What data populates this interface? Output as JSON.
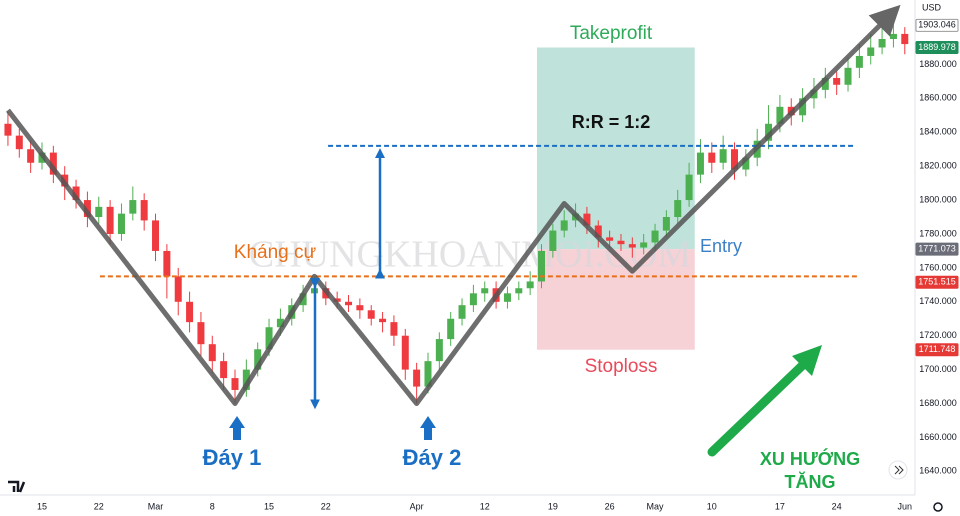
{
  "chart_data": {
    "type": "candlestick",
    "currency": "USD",
    "watermark": "CHUNGKHOANMOI.COM",
    "up_color": "#4caf50",
    "down_color": "#ef3a3f",
    "open": [
      1845,
      1838,
      1830,
      1822,
      1828,
      1815,
      1808,
      1800,
      1790,
      1796,
      1780,
      1792,
      1800,
      1788,
      1770,
      1755,
      1740,
      1728,
      1715,
      1705,
      1695,
      1688,
      1700,
      1712,
      1725,
      1730,
      1738,
      1745,
      1748,
      1742,
      1740,
      1738,
      1735,
      1730,
      1728,
      1720,
      1700,
      1690,
      1705,
      1718,
      1730,
      1738,
      1745,
      1748,
      1740,
      1745,
      1748,
      1752,
      1770,
      1782,
      1788,
      1792,
      1785,
      1778,
      1776,
      1774,
      1772,
      1775,
      1782,
      1790,
      1800,
      1815,
      1828,
      1822,
      1830,
      1818,
      1825,
      1835,
      1845,
      1855,
      1850,
      1860,
      1865,
      1872,
      1868,
      1878,
      1885,
      1890,
      1895,
      1898
    ],
    "high": [
      1852,
      1842,
      1835,
      1834,
      1832,
      1820,
      1812,
      1805,
      1802,
      1800,
      1798,
      1808,
      1804,
      1792,
      1774,
      1760,
      1746,
      1734,
      1720,
      1710,
      1700,
      1706,
      1716,
      1730,
      1736,
      1742,
      1750,
      1755,
      1752,
      1746,
      1744,
      1742,
      1738,
      1734,
      1732,
      1724,
      1704,
      1710,
      1722,
      1734,
      1742,
      1750,
      1752,
      1752,
      1749,
      1752,
      1758,
      1774,
      1786,
      1794,
      1798,
      1796,
      1788,
      1782,
      1780,
      1778,
      1780,
      1786,
      1794,
      1806,
      1822,
      1836,
      1834,
      1838,
      1834,
      1830,
      1842,
      1856,
      1862,
      1860,
      1866,
      1872,
      1878,
      1876,
      1884,
      1892,
      1898,
      1908,
      1906,
      1902
    ],
    "low": [
      1832,
      1825,
      1816,
      1818,
      1810,
      1800,
      1795,
      1784,
      1786,
      1774,
      1776,
      1788,
      1782,
      1764,
      1742,
      1732,
      1722,
      1708,
      1698,
      1688,
      1680,
      1684,
      1696,
      1708,
      1720,
      1726,
      1734,
      1740,
      1738,
      1736,
      1734,
      1730,
      1726,
      1722,
      1714,
      1694,
      1680,
      1686,
      1700,
      1714,
      1726,
      1734,
      1740,
      1736,
      1736,
      1741,
      1744,
      1748,
      1766,
      1778,
      1784,
      1780,
      1772,
      1772,
      1770,
      1766,
      1768,
      1770,
      1778,
      1786,
      1796,
      1810,
      1816,
      1818,
      1812,
      1814,
      1820,
      1830,
      1840,
      1844,
      1846,
      1854,
      1860,
      1862,
      1864,
      1872,
      1880,
      1886,
      1890,
      1886
    ],
    "close": [
      1838,
      1830,
      1822,
      1828,
      1815,
      1808,
      1800,
      1790,
      1796,
      1780,
      1792,
      1800,
      1788,
      1770,
      1755,
      1740,
      1728,
      1715,
      1705,
      1695,
      1688,
      1700,
      1712,
      1725,
      1730,
      1738,
      1745,
      1748,
      1742,
      1740,
      1738,
      1735,
      1730,
      1728,
      1720,
      1700,
      1690,
      1705,
      1718,
      1730,
      1738,
      1745,
      1748,
      1740,
      1745,
      1748,
      1752,
      1770,
      1782,
      1788,
      1792,
      1785,
      1778,
      1776,
      1774,
      1772,
      1775,
      1782,
      1790,
      1800,
      1815,
      1828,
      1822,
      1830,
      1818,
      1825,
      1835,
      1845,
      1855,
      1850,
      1860,
      1865,
      1872,
      1868,
      1878,
      1885,
      1890,
      1895,
      1898,
      1892
    ],
    "xlim": [
      -0.7,
      79.9
    ],
    "ylim": [
      1629,
      1918
    ],
    "yticks": [
      {
        "value": 1640,
        "label": "1640.000"
      },
      {
        "value": 1660,
        "label": "1660.000"
      },
      {
        "value": 1680,
        "label": "1680.000"
      },
      {
        "value": 1700,
        "label": "1700.000"
      },
      {
        "value": 1720,
        "label": "1720.000"
      },
      {
        "value": 1740,
        "label": "1740.000"
      },
      {
        "value": 1760,
        "label": "1760.000"
      },
      {
        "value": 1780,
        "label": "1780.000"
      },
      {
        "value": 1800,
        "label": "1800.000"
      },
      {
        "value": 1820,
        "label": "1820.000"
      },
      {
        "value": 1840,
        "label": "1840.000"
      },
      {
        "value": 1860,
        "label": "1860.000"
      },
      {
        "value": 1880,
        "label": "1880.000"
      }
    ],
    "xticks": [
      {
        "value": 3,
        "label": "15"
      },
      {
        "value": 8,
        "label": "22"
      },
      {
        "value": 13,
        "label": "Mar"
      },
      {
        "value": 18,
        "label": "8"
      },
      {
        "value": 23,
        "label": "15"
      },
      {
        "value": 28,
        "label": "22"
      },
      {
        "value": 36,
        "label": "Apr"
      },
      {
        "value": 42,
        "label": "12"
      },
      {
        "value": 48,
        "label": "19"
      },
      {
        "value": 53,
        "label": "26"
      },
      {
        "value": 57,
        "label": "May"
      },
      {
        "value": 62,
        "label": "10"
      },
      {
        "value": 68,
        "label": "17"
      },
      {
        "value": 73,
        "label": "24"
      },
      {
        "value": 79,
        "label": "Jun"
      }
    ],
    "price_labels": [
      {
        "value": 1903.046,
        "color": "#ffffff",
        "text_color": "#131722"
      },
      {
        "value": 1889.978,
        "color": "#1e8e5a",
        "text_color": "#ffffff"
      },
      {
        "value": 1771.073,
        "color": "#6b6e78",
        "text_color": "#ffffff"
      },
      {
        "value": 1751.515,
        "color": "#e53935",
        "text_color": "#ffffff"
      },
      {
        "value": 1711.748,
        "color": "#e53935",
        "text_color": "#ffffff"
      }
    ],
    "resistance": {
      "label": "Kháng cự",
      "value": 1755,
      "x": [
        8.1,
        75
      ],
      "color": "#e8701a"
    },
    "target_line": {
      "value": 1832,
      "x": [
        28.2,
        74.6
      ],
      "color": "#1a6fc4"
    },
    "pattern_path": {
      "x": [
        0,
        20,
        27,
        36,
        49,
        55,
        78
      ],
      "y": [
        1853,
        1680,
        1755,
        1680,
        1798,
        1758,
        1911
      ]
    },
    "bottoms": [
      "Đáy 1",
      "Đáy 2"
    ],
    "position": {
      "x": [
        46.6,
        60.5
      ],
      "takeprofit": {
        "label": "Takeprofit",
        "value": 1889.978
      },
      "entry": {
        "label": "Entry",
        "value": 1771.073
      },
      "stoploss": {
        "label": "Stoploss",
        "value": 1711.748
      },
      "ratio": "R:R = 1:2"
    },
    "trend": [
      "XU HƯỚNG",
      "TĂNG"
    ]
  }
}
